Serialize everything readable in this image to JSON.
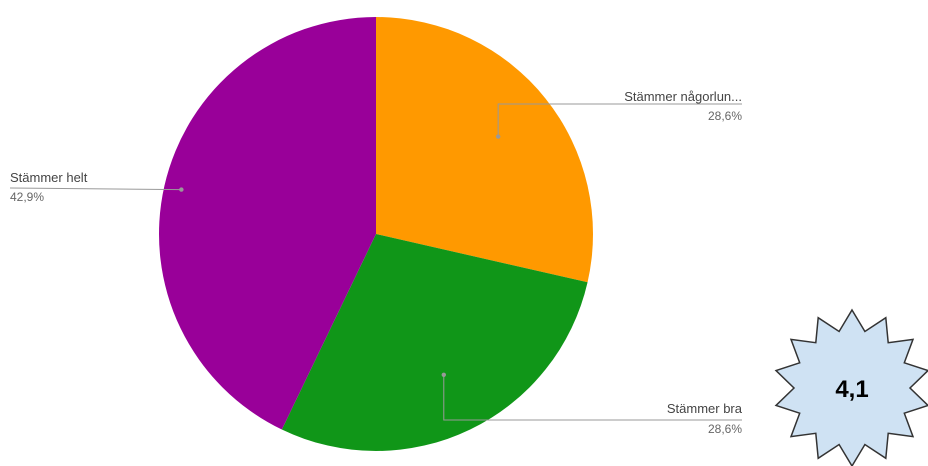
{
  "chart_data": {
    "type": "pie",
    "slices": [
      {
        "label": "Stämmer någorlun...",
        "value": 28.6,
        "value_label": "28,6%",
        "color": "#ff9900"
      },
      {
        "label": "Stämmer bra",
        "value": 28.6,
        "value_label": "28,6%",
        "color": "#109618"
      },
      {
        "label": "Stämmer helt",
        "value": 42.9,
        "value_label": "42,9%",
        "color": "#990099"
      }
    ],
    "start_angle_deg": 0,
    "direction": "clockwise",
    "legend": "none"
  },
  "badge": {
    "value": "4,1",
    "fill": "#cfe2f3",
    "stroke": "#333333"
  }
}
